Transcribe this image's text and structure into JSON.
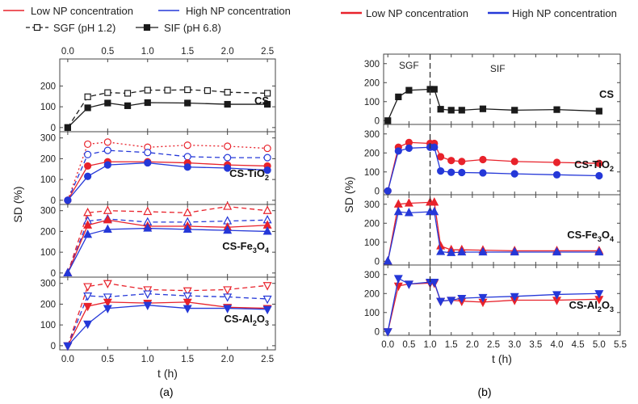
{
  "figure": {
    "caption_a": "(a)",
    "caption_b": "(b)",
    "colors": {
      "low": "#e8222b",
      "high": "#2538d8",
      "black": "#1a1a1a"
    }
  },
  "chart_data": [
    {
      "id": "a",
      "type": "line",
      "xlabel": "t (h)",
      "ylabel": "SD (%)",
      "xlim": [
        -0.1,
        2.6
      ],
      "xticks": [
        0.0,
        0.5,
        1.0,
        1.5,
        2.0,
        2.5
      ],
      "xtick_labels": [
        "0.0",
        "0.5",
        "1.0",
        "1.5",
        "2.0",
        "2.5"
      ],
      "ylim": [
        -20,
        330
      ],
      "yticks": [
        0,
        100,
        200,
        300
      ],
      "yticks_top": [
        0,
        100,
        200
      ],
      "legend": {
        "low": "Low NP concentration",
        "high": "High NP concentration",
        "sgf": "SGF (pH 1.2)",
        "sif": "SIF (pH 6.8)"
      },
      "panels": [
        {
          "label": "CS",
          "sub": "",
          "series": [
            {
              "name": "CS SGF",
              "color": "black",
              "dash": "dashed",
              "marker": "square",
              "fill": "open",
              "x": [
                0,
                0.25,
                0.5,
                0.75,
                1.0,
                1.25,
                1.5,
                1.75,
                2.0,
                2.5
              ],
              "y": [
                0,
                148,
                168,
                165,
                180,
                180,
                182,
                178,
                170,
                165
              ]
            },
            {
              "name": "CS SIF",
              "color": "black",
              "dash": "solid",
              "marker": "square",
              "fill": "filled",
              "x": [
                0,
                0.25,
                0.5,
                0.75,
                1.0,
                1.5,
                2.0,
                2.5
              ],
              "y": [
                0,
                95,
                118,
                105,
                120,
                118,
                112,
                112
              ]
            }
          ]
        },
        {
          "label": "CS-TiO",
          "sub": "2",
          "series": [
            {
              "name": "Low SGF",
              "color": "low",
              "dash": "dotted",
              "marker": "circle",
              "fill": "open",
              "x": [
                0,
                0.25,
                0.5,
                1.0,
                1.5,
                2.0,
                2.5
              ],
              "y": [
                0,
                270,
                280,
                255,
                265,
                260,
                250
              ]
            },
            {
              "name": "High SGF",
              "color": "high",
              "dash": "dashed",
              "marker": "circle",
              "fill": "open",
              "x": [
                0,
                0.25,
                0.5,
                1.0,
                1.5,
                2.0,
                2.5
              ],
              "y": [
                0,
                220,
                240,
                230,
                210,
                205,
                205
              ]
            },
            {
              "name": "Low SIF",
              "color": "low",
              "dash": "solid",
              "marker": "circle",
              "fill": "filled",
              "x": [
                0,
                0.25,
                0.5,
                1.0,
                1.5,
                2.0,
                2.5
              ],
              "y": [
                0,
                165,
                185,
                185,
                180,
                170,
                165
              ]
            },
            {
              "name": "High SIF",
              "color": "high",
              "dash": "solid",
              "marker": "circle",
              "fill": "filled",
              "x": [
                0,
                0.25,
                0.5,
                1.0,
                1.5,
                2.0,
                2.5
              ],
              "y": [
                0,
                115,
                170,
                180,
                160,
                155,
                145
              ]
            }
          ]
        },
        {
          "label": "CS-Fe",
          "sub": "3",
          "label2": "O",
          "sub2": "4",
          "series": [
            {
              "name": "Low SGF",
              "color": "low",
              "dash": "dashed",
              "marker": "triangle",
              "fill": "open",
              "x": [
                0,
                0.25,
                0.5,
                1.0,
                1.5,
                2.0,
                2.5
              ],
              "y": [
                0,
                290,
                300,
                295,
                290,
                320,
                300
              ]
            },
            {
              "name": "High SGF",
              "color": "high",
              "dash": "dashed",
              "marker": "triangle",
              "fill": "open",
              "x": [
                0,
                0.25,
                0.5,
                1.0,
                1.5,
                2.0,
                2.5
              ],
              "y": [
                0,
                250,
                260,
                245,
                245,
                250,
                255
              ]
            },
            {
              "name": "Low SIF",
              "color": "low",
              "dash": "solid",
              "marker": "triangle",
              "fill": "filled",
              "x": [
                0,
                0.25,
                0.5,
                1.0,
                1.5,
                2.0,
                2.5
              ],
              "y": [
                0,
                230,
                255,
                225,
                225,
                220,
                230
              ]
            },
            {
              "name": "High SIF",
              "color": "high",
              "dash": "solid",
              "marker": "triangle",
              "fill": "filled",
              "x": [
                0,
                0.25,
                0.5,
                1.0,
                1.5,
                2.0,
                2.5
              ],
              "y": [
                0,
                185,
                210,
                215,
                210,
                205,
                200
              ]
            }
          ]
        },
        {
          "label": "CS-Al",
          "sub": "2",
          "label2": "O",
          "sub2": "3",
          "series": [
            {
              "name": "Low SGF",
              "color": "low",
              "dash": "dashed",
              "marker": "triangle-down",
              "fill": "open",
              "x": [
                0,
                0.25,
                0.5,
                1.0,
                1.5,
                2.0,
                2.5
              ],
              "y": [
                0,
                285,
                300,
                270,
                265,
                270,
                290
              ]
            },
            {
              "name": "High SGF",
              "color": "high",
              "dash": "dashed",
              "marker": "triangle-down",
              "fill": "open",
              "x": [
                0,
                0.25,
                0.5,
                1.0,
                1.5,
                2.0,
                2.5
              ],
              "y": [
                0,
                240,
                235,
                250,
                240,
                235,
                225
              ]
            },
            {
              "name": "Low SIF",
              "color": "low",
              "dash": "solid",
              "marker": "triangle-down",
              "fill": "filled",
              "x": [
                0,
                0.25,
                0.5,
                1.0,
                1.5,
                2.0,
                2.5
              ],
              "y": [
                0,
                190,
                210,
                205,
                210,
                185,
                180
              ]
            },
            {
              "name": "High SIF",
              "color": "high",
              "dash": "solid",
              "marker": "triangle-down",
              "fill": "filled",
              "x": [
                0,
                0.25,
                0.5,
                1.0,
                1.5,
                2.0,
                2.5
              ],
              "y": [
                0,
                105,
                180,
                195,
                180,
                180,
                175
              ]
            }
          ]
        }
      ]
    },
    {
      "id": "b",
      "type": "line",
      "xlabel": "t (h)",
      "ylabel": "SD (%)",
      "xlim": [
        -0.1,
        5.5
      ],
      "xticks": [
        0.0,
        0.5,
        1.0,
        1.5,
        2.0,
        2.5,
        3.0,
        3.5,
        4.0,
        4.5,
        5.0,
        5.5
      ],
      "xtick_labels": [
        "0.0",
        "0.5",
        "1.0",
        "1.5",
        "2.0",
        "2.5",
        "3.0",
        "3.5",
        "4.0",
        "4.5",
        "5.0",
        "5.5"
      ],
      "ylim": [
        -20,
        350
      ],
      "yticks": [
        0,
        100,
        200,
        300
      ],
      "yticks_top": [
        0,
        100,
        200,
        300
      ],
      "phase_line_x": 1.0,
      "phase_labels": {
        "sgf": "SGF",
        "sif": "SIF"
      },
      "legend": {
        "low": "Low NP concentration",
        "high": "High NP concentration"
      },
      "panels": [
        {
          "label": "CS",
          "sub": "",
          "series": [
            {
              "name": "CS",
              "color": "black",
              "dash": "solid",
              "marker": "square",
              "fill": "filled",
              "x": [
                0,
                0.25,
                0.5,
                1.0,
                1.1,
                1.25,
                1.5,
                1.75,
                2.25,
                3.0,
                4.0,
                5.0
              ],
              "y": [
                0,
                125,
                160,
                165,
                165,
                60,
                55,
                55,
                62,
                55,
                58,
                50
              ]
            }
          ]
        },
        {
          "label": "CS-TiO",
          "sub": "2",
          "series": [
            {
              "name": "Low",
              "color": "low",
              "dash": "solid",
              "marker": "circle",
              "fill": "filled",
              "x": [
                0,
                0.25,
                0.5,
                1.0,
                1.1,
                1.25,
                1.5,
                1.75,
                2.25,
                3.0,
                4.0,
                5.0
              ],
              "y": [
                0,
                230,
                255,
                250,
                250,
                180,
                160,
                155,
                165,
                155,
                150,
                145
              ]
            },
            {
              "name": "High",
              "color": "high",
              "dash": "solid",
              "marker": "circle",
              "fill": "filled",
              "x": [
                0,
                0.25,
                0.5,
                1.0,
                1.1,
                1.25,
                1.5,
                1.75,
                2.25,
                3.0,
                4.0,
                5.0
              ],
              "y": [
                0,
                210,
                225,
                230,
                230,
                105,
                98,
                97,
                95,
                90,
                85,
                80
              ]
            }
          ]
        },
        {
          "label": "CS-Fe",
          "sub": "3",
          "label2": "O",
          "sub2": "4",
          "series": [
            {
              "name": "Low",
              "color": "low",
              "dash": "solid",
              "marker": "triangle",
              "fill": "filled",
              "x": [
                0,
                0.25,
                0.5,
                1.0,
                1.1,
                1.25,
                1.5,
                1.75,
                2.25,
                3.0,
                4.0,
                5.0
              ],
              "y": [
                0,
                300,
                305,
                310,
                310,
                80,
                60,
                60,
                58,
                55,
                55,
                55
              ]
            },
            {
              "name": "High",
              "color": "high",
              "dash": "solid",
              "marker": "triangle",
              "fill": "filled",
              "x": [
                0,
                0.25,
                0.5,
                1.0,
                1.1,
                1.25,
                1.5,
                1.75,
                2.25,
                3.0,
                4.0,
                5.0
              ],
              "y": [
                0,
                260,
                255,
                260,
                260,
                50,
                45,
                48,
                48,
                48,
                48,
                48
              ]
            }
          ]
        },
        {
          "label": "CS-Al",
          "sub": "2",
          "label2": "O",
          "sub2": "3",
          "series": [
            {
              "name": "Low",
              "color": "low",
              "dash": "solid",
              "marker": "triangle-down",
              "fill": "filled",
              "x": [
                0,
                0.25,
                0.5,
                1.0,
                1.1,
                1.25,
                1.5,
                1.75,
                2.25,
                3.0,
                4.0,
                5.0
              ],
              "y": [
                0,
                240,
                250,
                255,
                255,
                160,
                165,
                160,
                155,
                165,
                165,
                170
              ]
            },
            {
              "name": "High",
              "color": "high",
              "dash": "solid",
              "marker": "triangle-down",
              "fill": "filled",
              "x": [
                0,
                0.25,
                0.5,
                1.0,
                1.1,
                1.25,
                1.5,
                1.75,
                2.25,
                3.0,
                4.0,
                5.0
              ],
              "y": [
                0,
                280,
                250,
                260,
                260,
                160,
                165,
                175,
                180,
                185,
                195,
                200
              ]
            }
          ]
        }
      ]
    }
  ]
}
